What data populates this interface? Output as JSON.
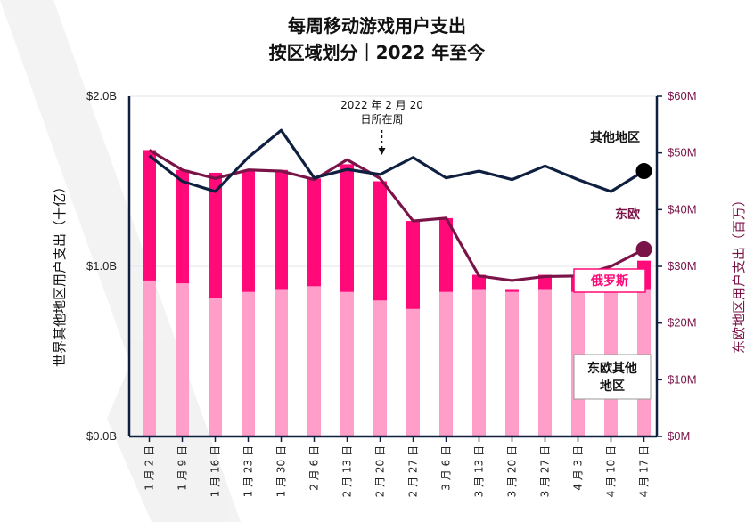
{
  "chart_data": {
    "type": "bar",
    "title": [
      "每周移动游戏用户支出",
      "按区域划分｜2022 年至今"
    ],
    "categories": [
      "1 月 2 日",
      "1 月 9 日",
      "1 月 16 日",
      "1 月 23 日",
      "1 月 30 日",
      "2 月 6 日",
      "2 月 13 日",
      "2 月 20 日",
      "2 月 27 日",
      "3 月 6 日",
      "3 月 13 日",
      "3 月 20 日",
      "3 月 27 日",
      "4 月 3 日",
      "4 月 10 日",
      "4 月 17 日"
    ],
    "ylabel_left": "世界其他地区用户支出（十亿）",
    "ylabel_right": "东欧地区用户支出（百万）",
    "y_left_ticks": [
      "$0.0B",
      "$1.0B",
      "$2.0B"
    ],
    "y_right_ticks": [
      "$0M",
      "$10M",
      "$20M",
      "$30M",
      "$40M",
      "$50M",
      "$60M"
    ],
    "ylim_left": [
      0,
      2.0
    ],
    "ylim_right": [
      0,
      60
    ],
    "series": [
      {
        "name": "俄罗斯",
        "axis": "right",
        "color": "#ff0a78",
        "values": [
          50.5,
          47,
          46.5,
          47,
          47,
          45.5,
          48,
          45,
          38,
          38.5,
          28.5,
          26,
          28.5,
          28.5,
          28.5,
          31
        ]
      },
      {
        "name": "东欧其他地区",
        "axis": "right",
        "color": "#ff9ec8",
        "values": [
          27.5,
          27,
          24.5,
          25.5,
          26,
          26.5,
          25.5,
          24,
          22.5,
          25.5,
          26,
          25.5,
          26,
          25.5,
          25.5,
          26
        ]
      },
      {
        "name": "东欧",
        "axis": "right",
        "color": "#7a1448",
        "type": "line",
        "values": [
          50.5,
          47,
          45.5,
          47,
          46.8,
          45.3,
          48.8,
          45.5,
          38,
          38.5,
          28.3,
          27.5,
          28.2,
          28.3,
          30,
          33
        ]
      },
      {
        "name": "其他地区",
        "axis": "left",
        "color": "#0f1f40",
        "type": "line",
        "values": [
          1.65,
          1.5,
          1.44,
          1.64,
          1.8,
          1.52,
          1.57,
          1.54,
          1.64,
          1.52,
          1.56,
          1.51,
          1.59,
          1.51,
          1.44,
          1.56
        ]
      }
    ],
    "annotation": [
      "2022 年 2 月 20",
      "日所在周"
    ],
    "legend_labels": {
      "other": "其他地区",
      "eastern_europe": "东欧",
      "russia": "俄罗斯",
      "other_eastern_europe": [
        "东欧其他",
        "地区"
      ]
    },
    "colors": {
      "russia": "#ff0a78",
      "other_ee": "#ff9ec8",
      "ee_line": "#7a1448",
      "other_line": "#0f1f40",
      "axis": "#0f1f40"
    }
  }
}
